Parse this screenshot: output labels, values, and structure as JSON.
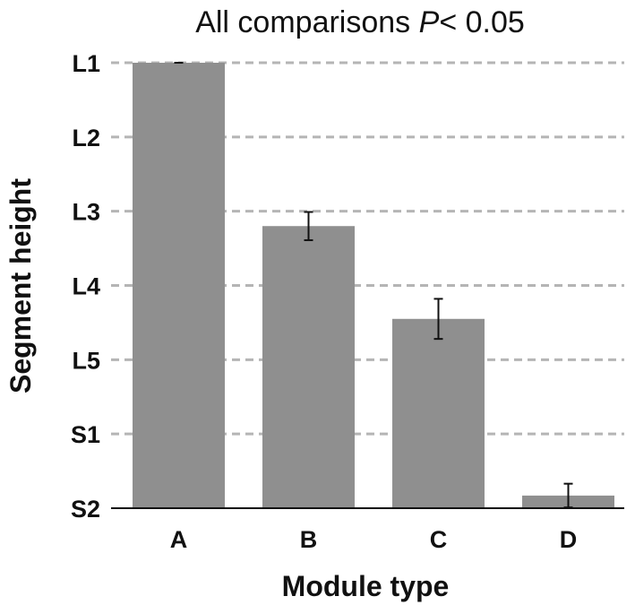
{
  "chart_data": {
    "type": "bar",
    "title": {
      "prefix": "All comparisons ",
      "italic": "P",
      "suffix": "< 0.05"
    },
    "xlabel": "Module type",
    "ylabel": "Segment height",
    "categories": [
      "A",
      "B",
      "C",
      "D"
    ],
    "y_ticks": [
      "L1",
      "L2",
      "L3",
      "L4",
      "L5",
      "S1",
      "S2"
    ],
    "values": [
      6.0,
      3.8,
      2.55,
      0.17
    ],
    "errors": [
      0.0,
      0.19,
      0.27,
      0.16
    ],
    "ylim": [
      0,
      6
    ],
    "grid": true,
    "bar_color": "#8f8f8f",
    "grid_color": "#b5b5b5"
  }
}
